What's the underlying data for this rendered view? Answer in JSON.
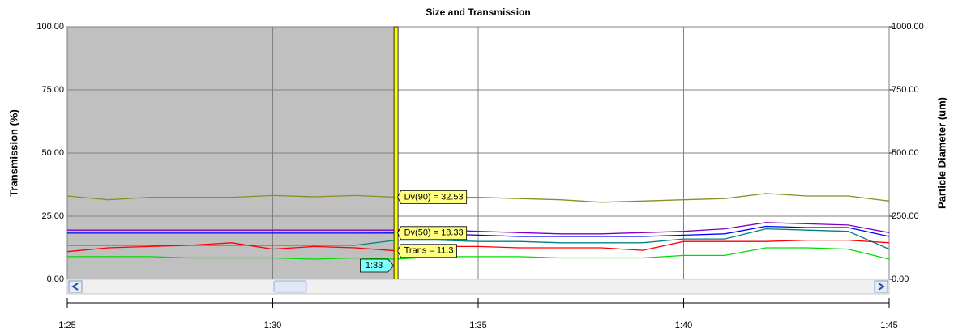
{
  "chart_data": {
    "type": "line",
    "title": "Size and Transmission",
    "ylabel": "Transmission (%)",
    "y2label": "Particle Diameter (um)",
    "x": [
      85,
      86,
      87,
      88,
      89,
      90,
      91,
      92,
      93,
      94,
      95,
      96,
      97,
      98,
      99,
      100,
      101,
      102,
      103,
      104,
      105
    ],
    "xlim": [
      85,
      105
    ],
    "xticks": [
      {
        "value": 85,
        "label": "1:25"
      },
      {
        "value": 90,
        "label": "1:30"
      },
      {
        "value": 95,
        "label": "1:35"
      },
      {
        "value": 100,
        "label": "1:40"
      },
      {
        "value": 105,
        "label": "1:45"
      }
    ],
    "ylim": [
      0,
      100
    ],
    "yticks": [
      {
        "value": 0,
        "label": "0.00"
      },
      {
        "value": 25,
        "label": "25.00"
      },
      {
        "value": 50,
        "label": "50.00"
      },
      {
        "value": 75,
        "label": "75.00"
      },
      {
        "value": 100,
        "label": "100.00"
      }
    ],
    "y2lim": [
      0,
      1000
    ],
    "y2ticks": [
      {
        "value": 0,
        "label": "0.00"
      },
      {
        "value": 250,
        "label": "250.00"
      },
      {
        "value": 500,
        "label": "500.00"
      },
      {
        "value": 750,
        "label": "750.00"
      },
      {
        "value": 1000,
        "label": "1000.00"
      }
    ],
    "grid": true,
    "series": [
      {
        "name": "Dv(90)",
        "color": "#8c8c28",
        "values": [
          33,
          31.5,
          32.5,
          32.5,
          32.5,
          33.2,
          32.7,
          33.2,
          32.53,
          32.5,
          32.5,
          32,
          31.5,
          30.5,
          31,
          31.5,
          32,
          34,
          33,
          33,
          31
        ]
      },
      {
        "color": "#8000c0",
        "values": [
          19.5,
          19.5,
          19.5,
          19.5,
          19.5,
          19.5,
          19.5,
          19.5,
          19.5,
          19.5,
          19,
          18.5,
          18,
          18,
          18.5,
          19,
          20,
          22.5,
          22,
          21.5,
          18.5
        ]
      },
      {
        "name": "Dv(50)",
        "color": "#0000ff",
        "values": [
          18.3,
          18.3,
          18.3,
          18.3,
          18.3,
          18.3,
          18.3,
          18.3,
          18.33,
          18,
          17.5,
          17,
          17,
          17,
          17,
          17.5,
          18,
          21,
          20.5,
          20.5,
          17
        ]
      },
      {
        "color": "#008080",
        "values": [
          13.5,
          13.5,
          13.5,
          13.5,
          13.5,
          13.5,
          13.5,
          13.5,
          15.5,
          15.5,
          15,
          15,
          14.5,
          14.5,
          14.5,
          16,
          16,
          20,
          19.5,
          19,
          12
        ]
      },
      {
        "name": "Trans",
        "color": "#ff0000",
        "values": [
          11,
          12.5,
          13,
          13.5,
          14.5,
          12,
          13,
          12.5,
          11.3,
          13,
          13,
          12.5,
          12.5,
          12.5,
          11.5,
          15,
          15,
          15,
          15.5,
          15.5,
          14.5
        ]
      },
      {
        "color": "#00dd00",
        "values": [
          9,
          9,
          9,
          8.5,
          8.5,
          8.5,
          8,
          8.5,
          8,
          9,
          9,
          9,
          8.5,
          8.5,
          8.5,
          9.5,
          9.5,
          12.5,
          12.5,
          12,
          8
        ]
      }
    ],
    "cursor": {
      "value": 93,
      "label": "1:33"
    },
    "annotations": [
      {
        "text": "Dv(90) = 32.53",
        "series": 0
      },
      {
        "text": "Dv(50) = 18.33",
        "series": 2
      },
      {
        "text": "Trans = 11.3",
        "series": 4
      }
    ]
  }
}
